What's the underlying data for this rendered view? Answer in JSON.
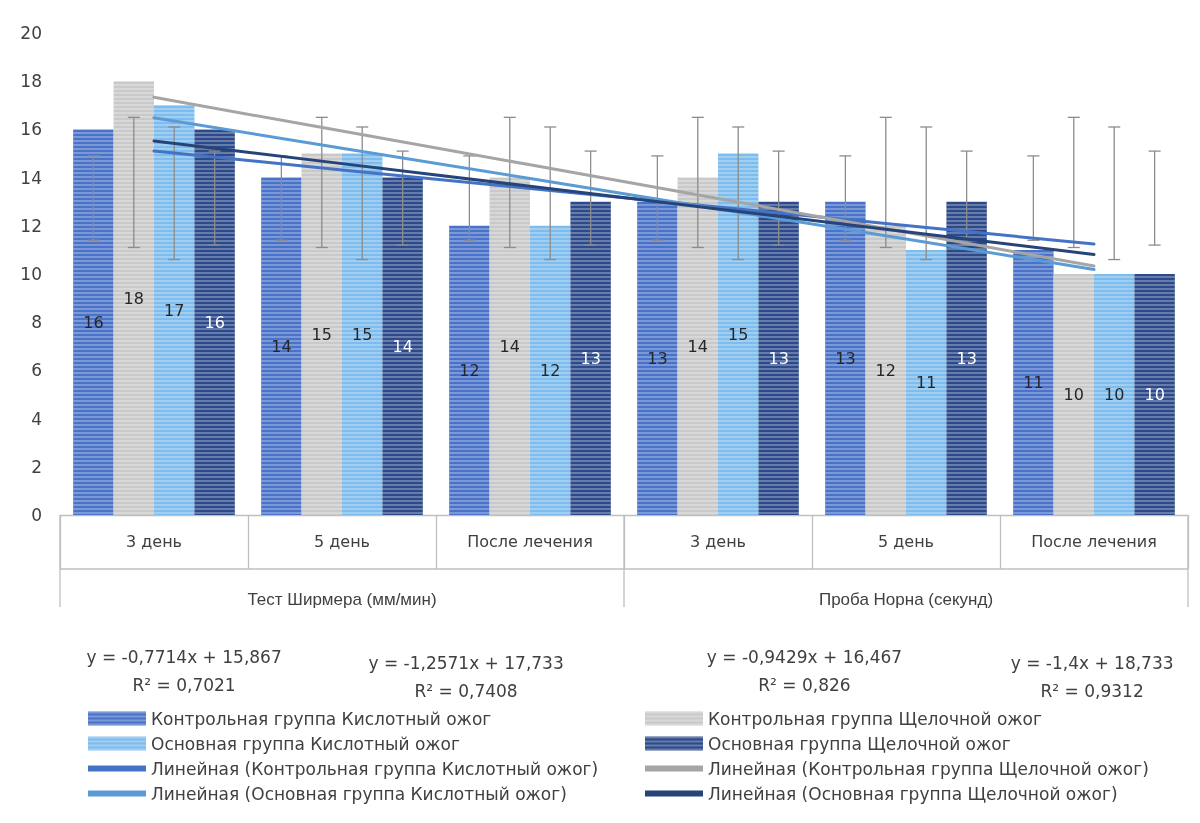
{
  "chart_data": {
    "type": "bar",
    "categories": [
      "3 день",
      "5 день",
      "После лечения",
      "3 день",
      "5 день",
      "После лечения"
    ],
    "ylim": [
      0,
      20
    ],
    "yticks": [
      0,
      2,
      4,
      6,
      8,
      10,
      12,
      14,
      16,
      18,
      20
    ],
    "grid": false,
    "legend": "bottom",
    "marker": "none",
    "series": [
      {
        "name": "Контрольная группа Кислотный ожог",
        "color": "#4a72c8",
        "values": [
          16,
          14,
          12,
          13,
          13,
          11
        ],
        "value_labels": [
          "16",
          "14",
          "12",
          "13",
          "13",
          "11"
        ],
        "errors": [
          [
            11.4,
            14.9
          ],
          [
            11.4,
            14.9
          ],
          [
            11.4,
            14.9
          ],
          [
            11.4,
            14.9
          ],
          [
            11.4,
            14.9
          ],
          [
            11.4,
            14.9
          ]
        ]
      },
      {
        "name": "Контрольная группа Щелочной ожог",
        "color": "#c9c9c9",
        "values": [
          18,
          15,
          14,
          14,
          12,
          10
        ],
        "value_labels": [
          "18",
          "15",
          "14",
          "14",
          "12",
          "10"
        ],
        "errors": [
          [
            11.1,
            16.5
          ],
          [
            11.1,
            16.5
          ],
          [
            11.1,
            16.5
          ],
          [
            11.1,
            16.5
          ],
          [
            11.1,
            16.5
          ],
          [
            11.1,
            16.5
          ]
        ]
      },
      {
        "name": "Основная группа Кислотный ожог",
        "color": "#7dbcec",
        "values": [
          17,
          15,
          12,
          15,
          11,
          10
        ],
        "value_labels": [
          "17",
          "15",
          "12",
          "15",
          "11",
          "10"
        ],
        "errors": [
          [
            10.6,
            16.1
          ],
          [
            10.6,
            16.1
          ],
          [
            10.6,
            16.1
          ],
          [
            10.6,
            16.1
          ],
          [
            10.6,
            16.1
          ],
          [
            10.6,
            16.1
          ]
        ]
      },
      {
        "name": "Основная группа Щелочной ожог",
        "color": "#2c4a8a",
        "values": [
          16,
          14,
          13,
          13,
          13,
          10
        ],
        "value_labels": [
          "16",
          "14",
          "13",
          "13",
          "13",
          "10"
        ],
        "errors": [
          [
            11.2,
            15.1
          ],
          [
            11.2,
            15.1
          ],
          [
            11.2,
            15.1
          ],
          [
            11.2,
            15.1
          ],
          [
            11.2,
            15.1
          ],
          [
            11.2,
            15.1
          ]
        ]
      },
      {
        "type": "line",
        "name": "Линейная (Контрольная группа Кислотный ожог)",
        "color": "#4472c4",
        "values": [
          15.1,
          14.32,
          13.55,
          12.78,
          12.01,
          11.24
        ]
      },
      {
        "type": "line",
        "name": "Линейная (Контрольная группа Щелочной ожог)",
        "color": "#a5a5a5",
        "values": [
          17.33,
          15.93,
          14.53,
          13.13,
          11.73,
          10.33
        ]
      },
      {
        "type": "line",
        "name": "Линейная (Основная группа Кислотный ожог)",
        "color": "#5b9bd5",
        "values": [
          16.48,
          15.22,
          13.96,
          12.7,
          11.45,
          10.19
        ]
      },
      {
        "type": "line",
        "name": "Линейная (Основная группа Щелочной ожог)",
        "color": "#264478",
        "values": [
          15.52,
          14.58,
          13.64,
          12.7,
          11.75,
          10.81
        ]
      }
    ],
    "annotations": [
      "Тест Ширмера (мм/мин)",
      "Проба Норна (секунд)",
      "y = -0,7714x + 15,867\nR² = 0,7021",
      "y = -1,2571x + 17,733\nR² = 0,7408",
      "y = -0,9429x + 16,467\nR² = 0,826",
      "y = -1,4x + 18,733\nR² = 0,9312"
    ]
  }
}
